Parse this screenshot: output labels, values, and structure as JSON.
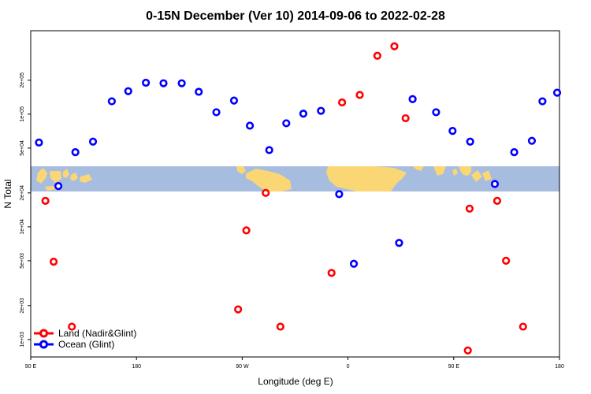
{
  "chart_data": {
    "type": "scatter",
    "title": "0-15N December (Ver 10)   2014-09-06 to 2022-02-28",
    "xlabel": "Longitude (deg E)",
    "ylabel": "N Total",
    "y_scale": "log",
    "ylim": [
      700,
      550000
    ],
    "x_ticks": [
      {
        "x": 90,
        "label": "90 E"
      },
      {
        "x": 180,
        "label": "180"
      },
      {
        "x": 270,
        "label": "90 W"
      },
      {
        "x": 360,
        "label": "0"
      },
      {
        "x": 450,
        "label": "90 E"
      },
      {
        "x": 540,
        "label": "180"
      }
    ],
    "y_ticks": [
      {
        "v": 1000,
        "label": "1e+03"
      },
      {
        "v": 2000,
        "label": "2e+03"
      },
      {
        "v": 5000,
        "label": "5e+03"
      },
      {
        "v": 10000,
        "label": "1e+04"
      },
      {
        "v": 20000,
        "label": "2e+04"
      },
      {
        "v": 50000,
        "label": "5e+04"
      },
      {
        "v": 100000,
        "label": "1e+05"
      },
      {
        "v": 200000,
        "label": "2e+05"
      }
    ],
    "series": [
      {
        "name": "Land (Nadir&Glint)",
        "color": "#ff0000",
        "points": [
          {
            "x": 102.5,
            "y": 17000
          },
          {
            "x": 109.5,
            "y": 4900
          },
          {
            "x": 125,
            "y": 1300
          },
          {
            "x": 266.5,
            "y": 1850
          },
          {
            "x": 273.5,
            "y": 9300
          },
          {
            "x": 290,
            "y": 20000
          },
          {
            "x": 302.5,
            "y": 1300
          },
          {
            "x": 346,
            "y": 3900
          },
          {
            "x": 355,
            "y": 127000
          },
          {
            "x": 370,
            "y": 148000
          },
          {
            "x": 385,
            "y": 330000
          },
          {
            "x": 399.5,
            "y": 400000
          },
          {
            "x": 409,
            "y": 92000
          },
          {
            "x": 462,
            "y": 800
          },
          {
            "x": 463.5,
            "y": 14500
          },
          {
            "x": 487,
            "y": 17000
          },
          {
            "x": 494.5,
            "y": 5000
          },
          {
            "x": 509,
            "y": 1300
          }
        ]
      },
      {
        "name": "Ocean (Glint)",
        "color": "#0000ff",
        "points": [
          {
            "x": 97,
            "y": 56000
          },
          {
            "x": 113.5,
            "y": 23000
          },
          {
            "x": 128,
            "y": 46000
          },
          {
            "x": 143,
            "y": 57000
          },
          {
            "x": 159,
            "y": 130000
          },
          {
            "x": 173,
            "y": 160000
          },
          {
            "x": 188,
            "y": 190000
          },
          {
            "x": 203,
            "y": 188000
          },
          {
            "x": 218.5,
            "y": 188000
          },
          {
            "x": 233,
            "y": 158000
          },
          {
            "x": 248,
            "y": 104000
          },
          {
            "x": 263,
            "y": 132000
          },
          {
            "x": 276.5,
            "y": 79000
          },
          {
            "x": 293,
            "y": 48000
          },
          {
            "x": 307.5,
            "y": 83000
          },
          {
            "x": 322,
            "y": 101000
          },
          {
            "x": 337,
            "y": 107000
          },
          {
            "x": 352.5,
            "y": 19500
          },
          {
            "x": 365,
            "y": 4700
          },
          {
            "x": 403.5,
            "y": 7200
          },
          {
            "x": 415,
            "y": 136000
          },
          {
            "x": 435,
            "y": 104000
          },
          {
            "x": 449,
            "y": 71000
          },
          {
            "x": 464,
            "y": 57000
          },
          {
            "x": 485,
            "y": 24000
          },
          {
            "x": 501.5,
            "y": 46000
          },
          {
            "x": 525.5,
            "y": 130000
          },
          {
            "x": 516.5,
            "y": 58000
          },
          {
            "x": 538,
            "y": 155000
          }
        ]
      }
    ],
    "legend": {
      "position": "bottom-left"
    },
    "background": {
      "map": "world map strip, 0-15N"
    },
    "grid": false
  }
}
